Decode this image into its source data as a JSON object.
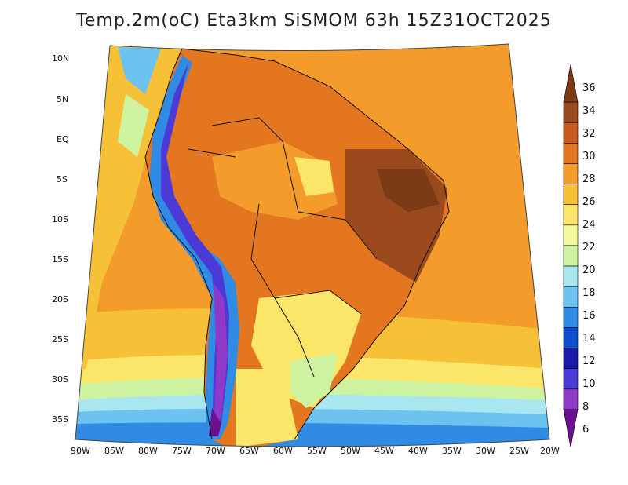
{
  "title": "Temp.2m(oC) Eta3km SiSMOM 63h 15Z31OCT2025",
  "map": {
    "variable": "2m air temperature",
    "units": "oC",
    "region": "South America"
  },
  "lat_labels": [
    "10N",
    "5N",
    "EQ",
    "5S",
    "10S",
    "15S",
    "20S",
    "25S",
    "30S",
    "35S"
  ],
  "lon_labels": [
    "90W",
    "85W",
    "80W",
    "75W",
    "70W",
    "65W",
    "60W",
    "55W",
    "50W",
    "45W",
    "40W",
    "35W",
    "30W",
    "25W",
    "20W"
  ],
  "colorbar": {
    "labels": [
      "36",
      "34",
      "32",
      "30",
      "28",
      "26",
      "24",
      "22",
      "20",
      "18",
      "16",
      "14",
      "12",
      "10",
      "8",
      "6"
    ],
    "colors": [
      "#7a3b16",
      "#9b4a1e",
      "#c85a1e",
      "#e3761f",
      "#f39b2b",
      "#f7c137",
      "#fbe66a",
      "#f4f79c",
      "#cdf2a0",
      "#a8e6f0",
      "#6cc3f0",
      "#2f8be4",
      "#0f4fce",
      "#1a1aa8",
      "#4b3ad6",
      "#8f39c8",
      "#6b1190"
    ]
  }
}
